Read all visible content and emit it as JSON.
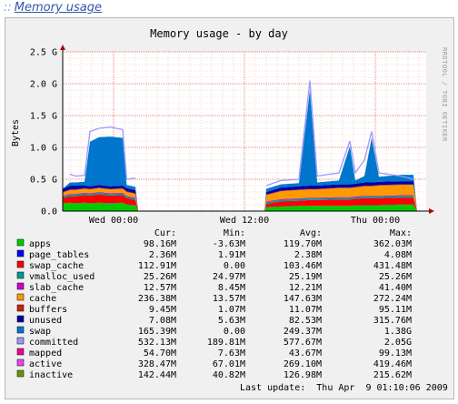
{
  "page": {
    "link_prefix": "::",
    "link_text": "Memory usage"
  },
  "graph": {
    "title": "Memory usage - by day",
    "ylabel": "Bytes",
    "watermark": "RRDTOOL / TOBI OETIKER",
    "last_update": "Last update:  Thu Apr  9 01:10:06 2009"
  },
  "legend": {
    "headers": [
      "Cur:",
      "Min:",
      "Avg:",
      "Max:"
    ],
    "rows": [
      {
        "name": "apps",
        "color": "#00cc00",
        "cur": "98.16M",
        "min": "-3.63M",
        "avg": "119.70M",
        "max": "362.03M"
      },
      {
        "name": "page_tables",
        "color": "#0000ff",
        "cur": "2.36M",
        "min": "1.91M",
        "avg": "2.38M",
        "max": "4.08M"
      },
      {
        "name": "swap_cache",
        "color": "#ff0000",
        "cur": "112.91M",
        "min": "0.00",
        "avg": "103.46M",
        "max": "431.48M"
      },
      {
        "name": "vmalloc_used",
        "color": "#009999",
        "cur": "25.26M",
        "min": "24.97M",
        "avg": "25.19M",
        "max": "25.26M"
      },
      {
        "name": "slab_cache",
        "color": "#cc00cc",
        "cur": "12.57M",
        "min": "8.45M",
        "avg": "12.21M",
        "max": "41.40M"
      },
      {
        "name": "cache",
        "color": "#ff9900",
        "cur": "236.38M",
        "min": "13.57M",
        "avg": "147.63M",
        "max": "272.24M"
      },
      {
        "name": "buffers",
        "color": "#cc2200",
        "cur": "9.45M",
        "min": "1.07M",
        "avg": "11.07M",
        "max": "95.11M"
      },
      {
        "name": "unused",
        "color": "#0000aa",
        "cur": "7.08M",
        "min": "5.63M",
        "avg": "82.53M",
        "max": "315.76M"
      },
      {
        "name": "swap",
        "color": "#0077cc",
        "cur": "165.39M",
        "min": "0.00",
        "avg": "249.37M",
        "max": "1.38G"
      },
      {
        "name": "committed",
        "color": "#9999ff",
        "cur": "532.13M",
        "min": "189.81M",
        "avg": "577.67M",
        "max": "2.05G"
      },
      {
        "name": "mapped",
        "color": "#ee0099",
        "cur": "54.70M",
        "min": "7.63M",
        "avg": "43.67M",
        "max": "99.13M"
      },
      {
        "name": "active",
        "color": "#ee44ee",
        "cur": "328.47M",
        "min": "67.01M",
        "avg": "269.10M",
        "max": "419.46M"
      },
      {
        "name": "inactive",
        "color": "#669900",
        "cur": "142.44M",
        "min": "40.82M",
        "avg": "126.98M",
        "max": "215.62M"
      }
    ]
  },
  "chart_data": {
    "type": "area",
    "title": "Memory usage - by day",
    "ylabel": "Bytes",
    "y_unit": "G",
    "ylim": [
      0,
      2.5
    ],
    "y_ticks": [
      {
        "v": 0,
        "label": "0.0"
      },
      {
        "v": 0.5,
        "label": "0.5 G"
      },
      {
        "v": 1.0,
        "label": "1.0 G"
      },
      {
        "v": 1.5,
        "label": "1.5 G"
      },
      {
        "v": 2.0,
        "label": "2.0 G"
      },
      {
        "v": 2.5,
        "label": "2.5 G"
      }
    ],
    "x_ticks": [
      {
        "t": 0.14,
        "label": "Wed 00:00"
      },
      {
        "t": 0.5,
        "label": "Wed 12:00"
      },
      {
        "t": 0.86,
        "label": "Thu 00:00"
      }
    ],
    "grid": true,
    "legend_placement": "bottom",
    "series_order": [
      "apps",
      "page_tables",
      "swap_cache",
      "vmalloc_used",
      "slab_cache",
      "cache",
      "buffers",
      "unused",
      "swap"
    ],
    "samples": [
      {
        "t": 0.0,
        "v": {
          "apps": 0.12,
          "page_tables": 0.003,
          "swap_cache": 0.08,
          "vmalloc_used": 0.025,
          "slab_cache": 0.012,
          "cache": 0.05,
          "buffers": 0.01,
          "unused": 0.05,
          "swap": 0.0
        },
        "committed": 0.0
      },
      {
        "t": 0.02,
        "v": {
          "apps": 0.13,
          "page_tables": 0.003,
          "swap_cache": 0.1,
          "vmalloc_used": 0.025,
          "slab_cache": 0.012,
          "cache": 0.06,
          "buffers": 0.01,
          "unused": 0.06,
          "swap": 0.05
        },
        "committed": 0.58
      },
      {
        "t": 0.035,
        "v": {
          "apps": 0.12,
          "page_tables": 0.003,
          "swap_cache": 0.11,
          "vmalloc_used": 0.025,
          "slab_cache": 0.012,
          "cache": 0.06,
          "buffers": 0.01,
          "unused": 0.06,
          "swap": 0.05
        },
        "committed": 0.55
      },
      {
        "t": 0.06,
        "v": {
          "apps": 0.13,
          "page_tables": 0.003,
          "swap_cache": 0.12,
          "vmalloc_used": 0.025,
          "slab_cache": 0.012,
          "cache": 0.06,
          "buffers": 0.01,
          "unused": 0.04,
          "swap": 0.06
        },
        "committed": 0.56
      },
      {
        "t": 0.075,
        "v": {
          "apps": 0.12,
          "page_tables": 0.003,
          "swap_cache": 0.12,
          "vmalloc_used": 0.025,
          "slab_cache": 0.012,
          "cache": 0.06,
          "buffers": 0.01,
          "unused": 0.04,
          "swap": 0.7
        },
        "committed": 1.25
      },
      {
        "t": 0.1,
        "v": {
          "apps": 0.13,
          "page_tables": 0.003,
          "swap_cache": 0.13,
          "vmalloc_used": 0.025,
          "slab_cache": 0.012,
          "cache": 0.06,
          "buffers": 0.01,
          "unused": 0.04,
          "swap": 0.75
        },
        "committed": 1.3
      },
      {
        "t": 0.13,
        "v": {
          "apps": 0.12,
          "page_tables": 0.003,
          "swap_cache": 0.12,
          "vmalloc_used": 0.025,
          "slab_cache": 0.012,
          "cache": 0.06,
          "buffers": 0.01,
          "unused": 0.04,
          "swap": 0.78
        },
        "committed": 1.32
      },
      {
        "t": 0.165,
        "v": {
          "apps": 0.13,
          "page_tables": 0.003,
          "swap_cache": 0.12,
          "vmalloc_used": 0.025,
          "slab_cache": 0.012,
          "cache": 0.06,
          "buffers": 0.01,
          "unused": 0.04,
          "swap": 0.75
        },
        "committed": 1.28
      },
      {
        "t": 0.176,
        "v": {
          "apps": 0.1,
          "page_tables": 0.003,
          "swap_cache": 0.1,
          "vmalloc_used": 0.025,
          "slab_cache": 0.012,
          "cache": 0.06,
          "buffers": 0.01,
          "unused": 0.05,
          "swap": 0.05
        },
        "committed": 0.5
      },
      {
        "t": 0.2,
        "v": {
          "apps": 0.09,
          "page_tables": 0.003,
          "swap_cache": 0.08,
          "vmalloc_used": 0.025,
          "slab_cache": 0.012,
          "cache": 0.06,
          "buffers": 0.01,
          "unused": 0.05,
          "swap": 0.05
        },
        "committed": 0.52
      },
      {
        "t": 0.208,
        "v": {
          "apps": 0.0,
          "page_tables": 0.0,
          "swap_cache": 0.0,
          "vmalloc_used": 0.0,
          "slab_cache": 0.0,
          "cache": 0.0,
          "buffers": 0.0,
          "unused": 0.0,
          "swap": 0.0
        },
        "committed": 0.0
      },
      {
        "t": 0.555,
        "v": {
          "apps": 0.0,
          "page_tables": 0.0,
          "swap_cache": 0.0,
          "vmalloc_used": 0.0,
          "slab_cache": 0.0,
          "cache": 0.0,
          "buffers": 0.0,
          "unused": 0.0,
          "swap": 0.0
        },
        "committed": 0.0
      },
      {
        "t": 0.56,
        "v": {
          "apps": 0.06,
          "page_tables": 0.003,
          "swap_cache": 0.05,
          "vmalloc_used": 0.025,
          "slab_cache": 0.012,
          "cache": 0.1,
          "buffers": 0.01,
          "unused": 0.04,
          "swap": 0.05
        },
        "committed": 0.4
      },
      {
        "t": 0.6,
        "v": {
          "apps": 0.07,
          "page_tables": 0.003,
          "swap_cache": 0.08,
          "vmalloc_used": 0.025,
          "slab_cache": 0.012,
          "cache": 0.12,
          "buffers": 0.01,
          "unused": 0.05,
          "swap": 0.05
        },
        "committed": 0.48
      },
      {
        "t": 0.65,
        "v": {
          "apps": 0.08,
          "page_tables": 0.003,
          "swap_cache": 0.08,
          "vmalloc_used": 0.025,
          "slab_cache": 0.012,
          "cache": 0.13,
          "buffers": 0.01,
          "unused": 0.05,
          "swap": 0.05
        },
        "committed": 0.5
      },
      {
        "t": 0.68,
        "v": {
          "apps": 0.08,
          "page_tables": 0.003,
          "swap_cache": 0.09,
          "vmalloc_used": 0.025,
          "slab_cache": 0.012,
          "cache": 0.13,
          "buffers": 0.01,
          "unused": 0.05,
          "swap": 1.5
        },
        "committed": 2.05
      },
      {
        "t": 0.7,
        "v": {
          "apps": 0.08,
          "page_tables": 0.003,
          "swap_cache": 0.09,
          "vmalloc_used": 0.025,
          "slab_cache": 0.012,
          "cache": 0.13,
          "buffers": 0.01,
          "unused": 0.05,
          "swap": 0.05
        },
        "committed": 0.55
      },
      {
        "t": 0.76,
        "v": {
          "apps": 0.08,
          "page_tables": 0.003,
          "swap_cache": 0.1,
          "vmalloc_used": 0.025,
          "slab_cache": 0.012,
          "cache": 0.14,
          "buffers": 0.01,
          "unused": 0.05,
          "swap": 0.06
        },
        "committed": 0.6
      },
      {
        "t": 0.79,
        "v": {
          "apps": 0.08,
          "page_tables": 0.003,
          "swap_cache": 0.1,
          "vmalloc_used": 0.025,
          "slab_cache": 0.012,
          "cache": 0.14,
          "buffers": 0.01,
          "unused": 0.05,
          "swap": 0.6
        },
        "committed": 1.1
      },
      {
        "t": 0.805,
        "v": {
          "apps": 0.09,
          "page_tables": 0.003,
          "swap_cache": 0.1,
          "vmalloc_used": 0.025,
          "slab_cache": 0.012,
          "cache": 0.14,
          "buffers": 0.01,
          "unused": 0.05,
          "swap": 0.05
        },
        "committed": 0.6
      },
      {
        "t": 0.83,
        "v": {
          "apps": 0.09,
          "page_tables": 0.003,
          "swap_cache": 0.11,
          "vmalloc_used": 0.025,
          "slab_cache": 0.012,
          "cache": 0.15,
          "buffers": 0.01,
          "unused": 0.05,
          "swap": 0.1
        },
        "committed": 0.8
      },
      {
        "t": 0.85,
        "v": {
          "apps": 0.09,
          "page_tables": 0.003,
          "swap_cache": 0.11,
          "vmalloc_used": 0.025,
          "slab_cache": 0.012,
          "cache": 0.15,
          "buffers": 0.01,
          "unused": 0.05,
          "swap": 0.7
        },
        "committed": 1.25
      },
      {
        "t": 0.87,
        "v": {
          "apps": 0.09,
          "page_tables": 0.003,
          "swap_cache": 0.11,
          "vmalloc_used": 0.025,
          "slab_cache": 0.012,
          "cache": 0.16,
          "buffers": 0.01,
          "unused": 0.05,
          "swap": 0.08
        },
        "committed": 0.6
      },
      {
        "t": 0.93,
        "v": {
          "apps": 0.1,
          "page_tables": 0.003,
          "swap_cache": 0.11,
          "vmalloc_used": 0.025,
          "slab_cache": 0.012,
          "cache": 0.16,
          "buffers": 0.01,
          "unused": 0.05,
          "swap": 0.1
        },
        "committed": 0.55
      },
      {
        "t": 0.965,
        "v": {
          "apps": 0.1,
          "page_tables": 0.003,
          "swap_cache": 0.11,
          "vmalloc_used": 0.025,
          "slab_cache": 0.012,
          "cache": 0.16,
          "buffers": 0.01,
          "unused": 0.05,
          "swap": 0.1
        },
        "committed": 0.5
      },
      {
        "t": 0.975,
        "v": {
          "apps": 0.0,
          "page_tables": 0.0,
          "swap_cache": 0.0,
          "vmalloc_used": 0.0,
          "slab_cache": 0.0,
          "cache": 0.0,
          "buffers": 0.0,
          "unused": 0.0,
          "swap": 0.0
        },
        "committed": 0.0
      },
      {
        "t": 1.0,
        "v": {
          "apps": 0.0,
          "page_tables": 0.0,
          "swap_cache": 0.0,
          "vmalloc_used": 0.0,
          "slab_cache": 0.0,
          "cache": 0.0,
          "buffers": 0.0,
          "unused": 0.0,
          "swap": 0.0
        },
        "committed": 0.0
      }
    ]
  }
}
